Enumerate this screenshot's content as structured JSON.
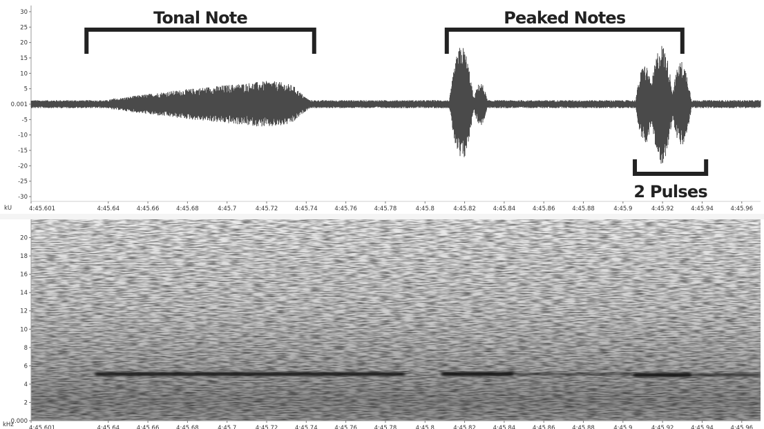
{
  "chart_data": [
    {
      "type": "waveform",
      "ylabel": "kU",
      "ylim": [
        -32,
        32
      ],
      "yticks": [
        30,
        25,
        20,
        15,
        10,
        5,
        0.001,
        -5,
        -10,
        -15,
        -20,
        -25,
        -30
      ],
      "ytick_labels": [
        "30",
        "25",
        "20",
        "15",
        "10",
        "5",
        "0.001",
        "-5",
        "-10",
        "-15",
        "-20",
        "-25",
        "-30"
      ],
      "xlim": [
        285.601,
        285.9695
      ],
      "xticks": [
        285.601,
        285.64,
        285.66,
        285.68,
        285.7,
        285.72,
        285.74,
        285.76,
        285.78,
        285.8,
        285.82,
        285.84,
        285.86,
        285.88,
        285.9,
        285.92,
        285.94,
        285.96
      ],
      "xtick_labels": [
        "4:45.601",
        "4:45.64",
        "4:45.66",
        "4:45.68",
        "4:45.7",
        "4:45.72",
        "4:45.74",
        "4:45.76",
        "4:45.78",
        "4:45.8",
        "4:45.82",
        "4:45.84",
        "4:45.86",
        "4:45.88",
        "4:45.9",
        "4:45.92",
        "4:45.94",
        "4:45.96"
      ],
      "noise_amplitude": 1.3,
      "envelope_segments": [
        {
          "label": "tonal note",
          "start": 285.633,
          "end": 285.748,
          "peak": 7.5,
          "shape": "swell",
          "peak_at": 285.72
        },
        {
          "label": "peaked note 1",
          "start": 285.812,
          "end": 285.825,
          "peak": 19,
          "shape": "pulse"
        },
        {
          "label": "peaked note 1 tail",
          "start": 285.824,
          "end": 285.832,
          "peak": 7,
          "shape": "pulse"
        },
        {
          "label": "peaked note 2 pulse A",
          "start": 285.906,
          "end": 285.916,
          "peak": 13,
          "shape": "pulse"
        },
        {
          "label": "peaked note 2 pulse B",
          "start": 285.913,
          "end": 285.926,
          "peak": 19.5,
          "shape": "pulse"
        },
        {
          "label": "peaked note 2 pulse C",
          "start": 285.924,
          "end": 285.935,
          "peak": 14,
          "shape": "pulse"
        }
      ],
      "annotations": [
        {
          "text": "Tonal Note",
          "x_start": 285.629,
          "x_end": 285.744,
          "y": 25
        },
        {
          "text": "Peaked Notes",
          "x_start": 285.811,
          "x_end": 285.93,
          "y": 25
        },
        {
          "text": "2 Pulses",
          "x_start": 285.906,
          "x_end": 285.942,
          "y": -20
        }
      ]
    },
    {
      "type": "spectrogram",
      "ylabel": "kHz",
      "ylim": [
        0,
        22
      ],
      "yticks": [
        0.0,
        2,
        4,
        6,
        8,
        10,
        12,
        14,
        16,
        18,
        20
      ],
      "ytick_labels": [
        "0.000",
        "2",
        "4",
        "6",
        "8",
        "10",
        "12",
        "14",
        "16",
        "18",
        "20"
      ],
      "xlim": [
        285.601,
        285.9695
      ],
      "xticks": [
        285.601,
        285.64,
        285.66,
        285.68,
        285.7,
        285.72,
        285.74,
        285.76,
        285.78,
        285.8,
        285.82,
        285.84,
        285.86,
        285.88,
        285.9,
        285.92,
        285.94,
        285.96
      ],
      "xtick_labels": [
        "4:45.601",
        "4:45.64",
        "4:45.66",
        "4:45.68",
        "4:45.7",
        "4:45.72",
        "4:45.74",
        "4:45.76",
        "4:45.78",
        "4:45.8",
        "4:45.82",
        "4:45.84",
        "4:45.86",
        "4:45.88",
        "4:45.9",
        "4:45.92",
        "4:45.94",
        "4:45.96"
      ],
      "bands": [
        {
          "start": 285.633,
          "end": 285.79,
          "freq_khz": 5.1,
          "strength": 0.9
        },
        {
          "start": 285.808,
          "end": 285.845,
          "freq_khz": 5.1,
          "strength": 1.0
        },
        {
          "start": 285.845,
          "end": 285.905,
          "freq_khz": 5.1,
          "strength": 0.35
        },
        {
          "start": 285.905,
          "end": 285.935,
          "freq_khz": 5.0,
          "strength": 1.0
        },
        {
          "start": 285.935,
          "end": 285.9695,
          "freq_khz": 5.0,
          "strength": 0.55
        }
      ]
    }
  ],
  "colors": {
    "waveform": "#4a4a4a",
    "annotation": "#222222",
    "spectrogram_light": "#e4e4e4",
    "spectrogram_dark": "#3a3a3a",
    "band": "#141414"
  }
}
